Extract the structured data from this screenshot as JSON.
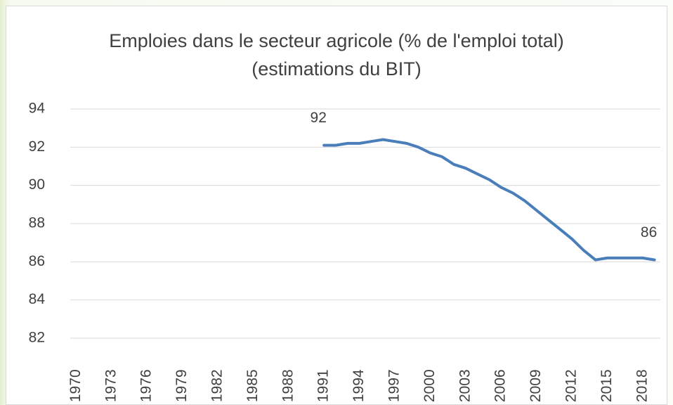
{
  "chart_data": {
    "type": "line",
    "title": "Emploies dans le secteur agricole (% de l'emploi total) (estimations du BIT)",
    "categories": [
      "1970",
      null,
      null,
      "1973",
      null,
      null,
      "1976",
      null,
      null,
      "1979",
      null,
      null,
      "1982",
      null,
      null,
      "1985",
      null,
      null,
      "1988",
      null,
      null,
      "1991",
      null,
      null,
      "1994",
      null,
      null,
      "1997",
      null,
      null,
      "2000",
      null,
      null,
      "2003",
      null,
      null,
      "2006",
      null,
      null,
      "2009",
      null,
      null,
      "2012",
      null,
      null,
      "2015",
      null,
      null,
      "2018",
      null
    ],
    "series": [
      {
        "name": "Emploies dans le secteur agricole",
        "color": "#4a7ebb",
        "values": [
          null,
          null,
          null,
          null,
          null,
          null,
          null,
          null,
          null,
          null,
          null,
          null,
          null,
          null,
          null,
          null,
          null,
          null,
          null,
          null,
          null,
          92.1,
          92.1,
          92.2,
          92.2,
          92.3,
          92.4,
          92.3,
          92.2,
          92.0,
          91.7,
          91.5,
          91.1,
          90.9,
          90.6,
          90.3,
          89.9,
          89.6,
          89.2,
          88.7,
          88.2,
          87.7,
          87.2,
          86.6,
          86.1,
          86.2,
          86.2,
          86.2,
          86.2,
          86.1
        ],
        "value_labels": [
          null,
          null,
          null,
          null,
          null,
          null,
          null,
          null,
          null,
          null,
          null,
          null,
          null,
          null,
          null,
          null,
          null,
          null,
          null,
          null,
          null,
          "92",
          null,
          null,
          null,
          null,
          null,
          null,
          null,
          null,
          null,
          null,
          null,
          null,
          null,
          null,
          null,
          null,
          null,
          null,
          null,
          null,
          null,
          null,
          null,
          null,
          null,
          null,
          null,
          "86"
        ]
      }
    ],
    "ylim": [
      82,
      94
    ],
    "yticks": [
      82,
      84,
      86,
      88,
      90,
      92,
      94
    ],
    "grid": true
  }
}
